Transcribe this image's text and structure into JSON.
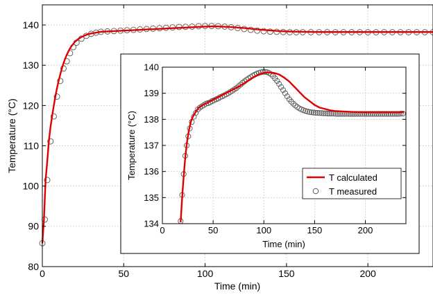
{
  "chart_data": [
    {
      "type": "line",
      "xlabel": "Time (min)",
      "ylabel": "Temperature (°C)",
      "xlim": [
        0,
        240
      ],
      "ylim": [
        80,
        145
      ],
      "x_ticks": [
        0,
        50,
        100,
        150,
        200
      ],
      "y_ticks": [
        80,
        90,
        100,
        110,
        120,
        130,
        140
      ],
      "grid": true,
      "series": [
        {
          "name": "T calculated",
          "style": "line",
          "color": "#e00000",
          "x": [
            0,
            1,
            2,
            3,
            4,
            5,
            6,
            7,
            8,
            9,
            10,
            11,
            12,
            13,
            14,
            15,
            16,
            17,
            18,
            19,
            20,
            22,
            24,
            26,
            28,
            30,
            33,
            36,
            40,
            45,
            50,
            55,
            60,
            65,
            70,
            75,
            80,
            85,
            90,
            95,
            100,
            105,
            110,
            115,
            120,
            125,
            130,
            135,
            140,
            145,
            150,
            160,
            170,
            180,
            190,
            200,
            210,
            220,
            230,
            240
          ],
          "values": [
            85.8,
            91.7,
            101.5,
            106.0,
            111.1,
            114.6,
            117.3,
            119.9,
            122.2,
            124.3,
            126.1,
            127.7,
            129.2,
            130.5,
            131.6,
            132.6,
            133.4,
            134.2,
            134.8,
            135.3,
            135.8,
            136.5,
            137.0,
            137.4,
            137.7,
            137.9,
            138.1,
            138.3,
            138.4,
            138.5,
            138.6,
            138.7,
            138.8,
            138.9,
            139.0,
            139.1,
            139.2,
            139.3,
            139.4,
            139.5,
            139.6,
            139.65,
            139.6,
            139.5,
            139.35,
            139.2,
            139.0,
            138.8,
            138.65,
            138.5,
            138.4,
            138.3,
            138.25,
            138.25,
            138.25,
            138.25,
            138.25,
            138.25,
            138.25,
            138.25
          ]
        },
        {
          "name": "T measured",
          "style": "markers",
          "color": "#555555",
          "x": [
            0,
            1.5,
            3,
            5,
            7,
            9,
            11,
            13,
            15,
            17,
            19,
            21,
            24,
            27,
            30,
            33,
            36,
            40,
            44,
            48,
            52,
            56,
            60,
            64,
            68,
            72,
            76,
            80,
            84,
            88,
            92,
            96,
            100,
            104,
            108,
            112,
            116,
            120,
            124,
            128,
            132,
            136,
            140,
            144,
            148,
            152,
            156,
            160,
            165,
            170,
            175,
            180,
            185,
            190,
            195,
            200,
            205,
            210,
            215,
            220,
            225,
            230,
            235,
            240
          ],
          "values": [
            85.8,
            91.7,
            101.5,
            111.1,
            117.3,
            122.2,
            126.1,
            129.2,
            131.0,
            133.0,
            134.5,
            135.6,
            136.6,
            137.3,
            137.8,
            138.1,
            138.3,
            138.4,
            138.5,
            138.6,
            138.7,
            138.8,
            138.9,
            139.0,
            139.1,
            139.2,
            139.3,
            139.4,
            139.5,
            139.55,
            139.6,
            139.7,
            139.75,
            139.75,
            139.7,
            139.6,
            139.45,
            139.25,
            139.0,
            138.8,
            138.6,
            138.45,
            138.35,
            138.3,
            138.25,
            138.2,
            138.2,
            138.2,
            138.2,
            138.2,
            138.2,
            138.2,
            138.2,
            138.2,
            138.2,
            138.2,
            138.2,
            138.2,
            138.2,
            138.2,
            138.2,
            138.2,
            138.2,
            138.2
          ]
        }
      ]
    },
    {
      "type": "line",
      "xlabel": "Time (min)",
      "ylabel": "Temperature (°C)",
      "xlim": [
        0,
        240
      ],
      "ylim": [
        134,
        140
      ],
      "x_ticks": [
        0,
        50,
        100,
        150,
        200
      ],
      "y_ticks": [
        134,
        135,
        136,
        137,
        138,
        139,
        140
      ],
      "grid": true,
      "legend": {
        "position": "lower-right",
        "entries": [
          "T calculated",
          "T measured"
        ]
      },
      "series": [
        {
          "name": "T calculated",
          "style": "line",
          "color": "#e00000",
          "x": [
            18,
            19,
            20,
            21,
            22,
            23,
            24,
            26,
            28,
            30,
            33,
            36,
            40,
            45,
            50,
            55,
            60,
            65,
            70,
            75,
            80,
            85,
            90,
            95,
            100,
            105,
            110,
            115,
            120,
            125,
            130,
            135,
            140,
            145,
            150,
            155,
            160,
            165,
            170,
            180,
            190,
            200,
            210,
            220,
            230,
            238
          ],
          "values": [
            134.05,
            134.7,
            135.3,
            135.8,
            136.3,
            136.7,
            137.05,
            137.55,
            137.9,
            138.1,
            138.3,
            138.45,
            138.55,
            138.65,
            138.75,
            138.85,
            138.95,
            139.05,
            139.15,
            139.25,
            139.37,
            139.5,
            139.62,
            139.72,
            139.78,
            139.8,
            139.78,
            139.72,
            139.6,
            139.45,
            139.25,
            139.05,
            138.85,
            138.7,
            138.55,
            138.45,
            138.4,
            138.35,
            138.32,
            138.3,
            138.28,
            138.27,
            138.27,
            138.27,
            138.27,
            138.27
          ]
        },
        {
          "name": "T measured",
          "style": "markers",
          "color": "#555555",
          "x": [
            18,
            19.5,
            21,
            22.5,
            24,
            25.5,
            27,
            29,
            31,
            33,
            35,
            37,
            39,
            41,
            43,
            45,
            47,
            49,
            51,
            53,
            55,
            57,
            59,
            61,
            63,
            65,
            67,
            69,
            71,
            73,
            75,
            77,
            79,
            81,
            83,
            85,
            87,
            89,
            91,
            93,
            95,
            97,
            99,
            101,
            103,
            105,
            107,
            109,
            111,
            113,
            115,
            117,
            119,
            121,
            123,
            125,
            127,
            129,
            131,
            133,
            135,
            137,
            139,
            141,
            143,
            145,
            147,
            149,
            151,
            153,
            155,
            157,
            159,
            161,
            163,
            165,
            167,
            169,
            171,
            173,
            175,
            177,
            179,
            181,
            183,
            185,
            187,
            189,
            191,
            193,
            195,
            197,
            199,
            201,
            203,
            205,
            207,
            209,
            211,
            213,
            215,
            217,
            219,
            221,
            223,
            225,
            227,
            229,
            231,
            233,
            235,
            237
          ],
          "values": [
            134.1,
            135.1,
            135.9,
            136.6,
            137.0,
            137.35,
            137.65,
            137.9,
            138.1,
            138.25,
            138.38,
            138.45,
            138.5,
            138.55,
            138.6,
            138.62,
            138.65,
            138.7,
            138.73,
            138.77,
            138.8,
            138.85,
            138.88,
            138.92,
            138.96,
            139.0,
            139.05,
            139.1,
            139.15,
            139.2,
            139.27,
            139.33,
            139.4,
            139.46,
            139.52,
            139.57,
            139.62,
            139.67,
            139.71,
            139.75,
            139.78,
            139.8,
            139.82,
            139.82,
            139.81,
            139.78,
            139.73,
            139.66,
            139.57,
            139.47,
            139.36,
            139.24,
            139.12,
            139.0,
            138.88,
            138.77,
            138.68,
            138.6,
            138.53,
            138.47,
            138.42,
            138.38,
            138.35,
            138.32,
            138.3,
            138.28,
            138.27,
            138.26,
            138.25,
            138.25,
            138.24,
            138.24,
            138.23,
            138.23,
            138.22,
            138.22,
            138.22,
            138.22,
            138.21,
            138.21,
            138.21,
            138.21,
            138.21,
            138.21,
            138.21,
            138.21,
            138.21,
            138.21,
            138.21,
            138.21,
            138.21,
            138.21,
            138.21,
            138.21,
            138.21,
            138.21,
            138.21,
            138.21,
            138.21,
            138.21,
            138.21,
            138.21,
            138.21,
            138.21,
            138.21,
            138.21,
            138.21,
            138.21,
            138.21,
            138.21,
            138.22,
            138.22
          ]
        }
      ]
    }
  ]
}
